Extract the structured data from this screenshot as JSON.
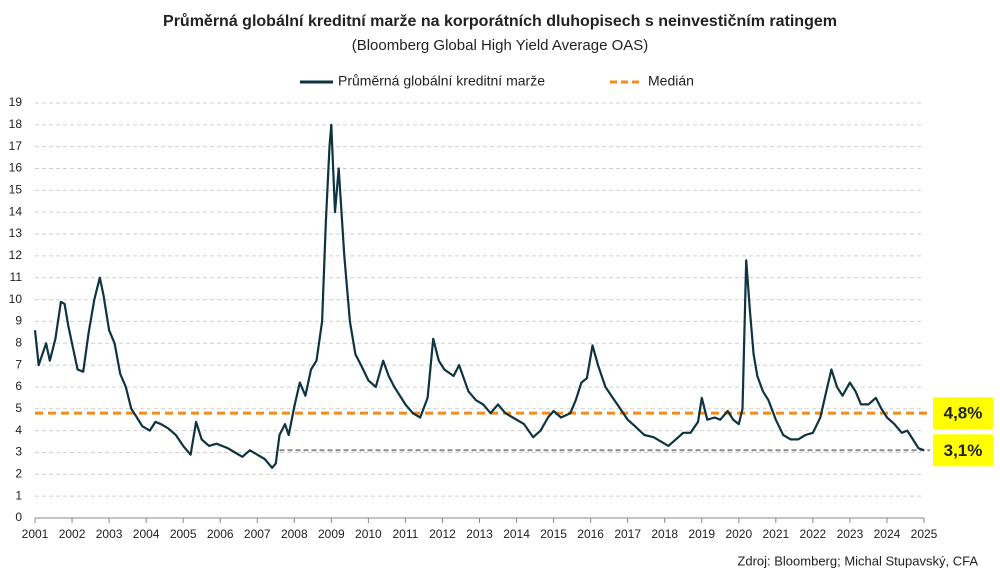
{
  "chart_data": {
    "type": "line",
    "title": "Průměrná globální kreditní marže na korporátních dluhopisech s neinvestičním ratingem",
    "subtitle": "(Bloomberg Global High Yield Average OAS)",
    "source": "Zdroj: Bloomberg; Michal Stupavský, CFA",
    "xlim": [
      2001,
      2025
    ],
    "xticks": [
      2001,
      2002,
      2003,
      2004,
      2005,
      2006,
      2007,
      2008,
      2009,
      2010,
      2011,
      2012,
      2013,
      2014,
      2015,
      2016,
      2017,
      2018,
      2019,
      2020,
      2021,
      2022,
      2023,
      2024,
      2025
    ],
    "ylim": [
      0,
      19
    ],
    "yticks": [
      0,
      1,
      2,
      3,
      4,
      5,
      6,
      7,
      8,
      9,
      10,
      11,
      12,
      13,
      14,
      15,
      16,
      17,
      18,
      19
    ],
    "grid": true,
    "series": [
      {
        "name": "Průměrná globální kreditní marže",
        "color": "#0d3440",
        "x": [
          2001.0,
          2001.1,
          2001.2,
          2001.3,
          2001.4,
          2001.55,
          2001.7,
          2001.8,
          2001.9,
          2002.0,
          2002.15,
          2002.3,
          2002.45,
          2002.6,
          2002.75,
          2002.85,
          2003.0,
          2003.15,
          2003.3,
          2003.45,
          2003.6,
          2003.75,
          2003.9,
          2004.1,
          2004.25,
          2004.4,
          2004.6,
          2004.8,
          2005.0,
          2005.2,
          2005.35,
          2005.5,
          2005.7,
          2005.9,
          2006.2,
          2006.4,
          2006.6,
          2006.8,
          2007.0,
          2007.2,
          2007.4,
          2007.5,
          2007.6,
          2007.75,
          2007.85,
          2008.0,
          2008.15,
          2008.3,
          2008.45,
          2008.6,
          2008.75,
          2008.85,
          2008.95,
          2009.0,
          2009.1,
          2009.2,
          2009.35,
          2009.5,
          2009.65,
          2009.8,
          2010.0,
          2010.2,
          2010.4,
          2010.55,
          2010.7,
          2010.85,
          2011.0,
          2011.2,
          2011.4,
          2011.6,
          2011.75,
          2011.9,
          2012.05,
          2012.3,
          2012.45,
          2012.7,
          2012.9,
          2013.1,
          2013.3,
          2013.5,
          2013.7,
          2013.9,
          2014.2,
          2014.45,
          2014.65,
          2014.85,
          2015.0,
          2015.2,
          2015.45,
          2015.6,
          2015.75,
          2015.9,
          2016.05,
          2016.2,
          2016.4,
          2016.6,
          2016.8,
          2017.0,
          2017.2,
          2017.45,
          2017.7,
          2017.9,
          2018.1,
          2018.3,
          2018.5,
          2018.7,
          2018.9,
          2019.0,
          2019.15,
          2019.35,
          2019.5,
          2019.7,
          2019.85,
          2020.0,
          2020.1,
          2020.2,
          2020.3,
          2020.4,
          2020.5,
          2020.65,
          2020.8,
          2021.0,
          2021.2,
          2021.4,
          2021.6,
          2021.8,
          2022.0,
          2022.2,
          2022.35,
          2022.5,
          2022.65,
          2022.8,
          2023.0,
          2023.15,
          2023.3,
          2023.5,
          2023.7,
          2023.85,
          2024.0,
          2024.2,
          2024.4,
          2024.55,
          2024.7,
          2024.85,
          2025.0
        ],
        "values": [
          8.6,
          7.0,
          7.5,
          8.0,
          7.2,
          8.2,
          9.9,
          9.8,
          8.8,
          8.0,
          6.8,
          6.7,
          8.5,
          10.0,
          11.0,
          10.2,
          8.6,
          8.0,
          6.6,
          6.0,
          5.0,
          4.6,
          4.2,
          4.0,
          4.4,
          4.3,
          4.1,
          3.8,
          3.3,
          2.9,
          4.4,
          3.6,
          3.3,
          3.4,
          3.2,
          3.0,
          2.8,
          3.1,
          2.9,
          2.7,
          2.3,
          2.5,
          3.8,
          4.3,
          3.8,
          5.1,
          6.2,
          5.6,
          6.8,
          7.2,
          9.0,
          13.5,
          17.0,
          18.0,
          14.0,
          16.0,
          12.0,
          9.0,
          7.5,
          7.0,
          6.3,
          6.0,
          7.2,
          6.5,
          6.0,
          5.6,
          5.2,
          4.8,
          4.6,
          5.5,
          8.2,
          7.2,
          6.8,
          6.5,
          7.0,
          5.8,
          5.4,
          5.2,
          4.8,
          5.2,
          4.8,
          4.6,
          4.3,
          3.7,
          4.0,
          4.6,
          4.9,
          4.6,
          4.8,
          5.4,
          6.2,
          6.4,
          7.9,
          7.0,
          6.0,
          5.5,
          5.0,
          4.5,
          4.2,
          3.8,
          3.7,
          3.5,
          3.3,
          3.6,
          3.9,
          3.9,
          4.4,
          5.5,
          4.5,
          4.6,
          4.5,
          4.9,
          4.5,
          4.3,
          5.0,
          11.8,
          9.5,
          7.5,
          6.5,
          5.8,
          5.4,
          4.5,
          3.8,
          3.6,
          3.6,
          3.8,
          3.9,
          4.6,
          5.7,
          6.8,
          6.0,
          5.6,
          6.2,
          5.8,
          5.2,
          5.2,
          5.5,
          5.0,
          4.6,
          4.3,
          3.9,
          4.0,
          3.6,
          3.2,
          3.1
        ]
      }
    ],
    "reference_lines": [
      {
        "name": "Medián",
        "value": 4.8,
        "label": "4,8%",
        "color": "#f28c1c"
      },
      {
        "value": 3.1,
        "label": "3,1%",
        "color": "#8c8c8c",
        "x_start": 2007.6
      }
    ]
  }
}
